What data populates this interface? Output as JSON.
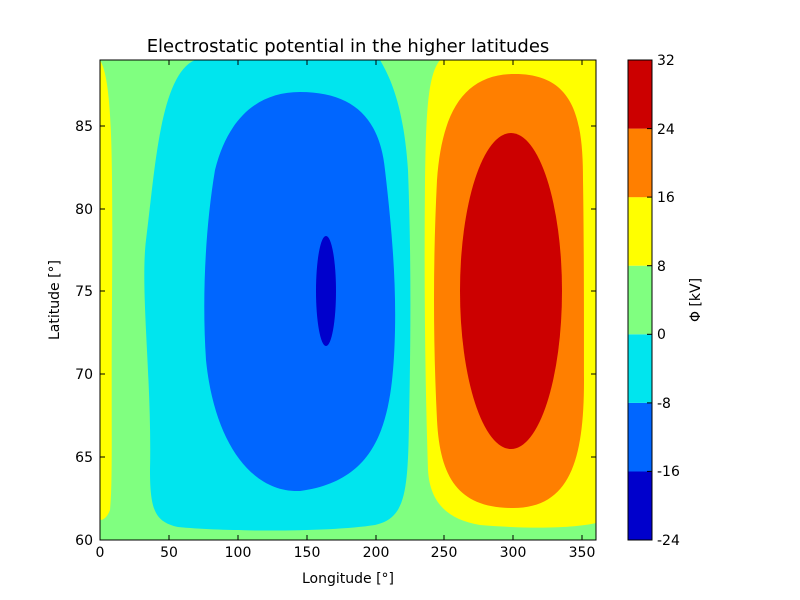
{
  "chart_data": {
    "type": "contourf",
    "title": "Electrostatic potential in the higher latitudes",
    "xlabel": "Longitude [°]",
    "ylabel": "Latitude  [°]",
    "xlim": [
      0,
      360
    ],
    "ylim": [
      60,
      89
    ],
    "xticks": [
      0,
      50,
      100,
      150,
      200,
      250,
      300,
      350
    ],
    "yticks": [
      60,
      65,
      70,
      75,
      80,
      85
    ],
    "colorbar": {
      "label": "Φ  [kV]",
      "levels": [
        -24,
        -16,
        -8,
        0,
        8,
        16,
        24,
        32
      ],
      "tick_labels": [
        "-24",
        "-16",
        "-8",
        "0",
        "8",
        "16",
        "24",
        "32"
      ],
      "colors": [
        "#0000cc",
        "#0066ff",
        "#00e5ee",
        "#80ff80",
        "#ffff00",
        "#ff7f00",
        "#cc0000"
      ]
    },
    "regions": [
      {
        "level": "-8 to 0",
        "color": "#00e5ee",
        "lon_range": [
          30,
          225
        ],
        "lat_range": [
          60.5,
          89
        ]
      },
      {
        "level": "-16 to -8",
        "color": "#0066ff",
        "lon_range": [
          76,
          214
        ],
        "lat_range": [
          63,
          87
        ]
      },
      {
        "level": "-24 to -16",
        "color": "#0000cc",
        "lon_range": [
          158,
          172
        ],
        "lat_range": [
          71.7,
          78.3
        ]
      },
      {
        "level": "8 to 16",
        "color": "#ffff00",
        "lon_range": [
          235,
          360
        ],
        "lat_range": [
          60.6,
          89
        ]
      },
      {
        "level": "16 to 24",
        "color": "#ff7f00",
        "lon_range": [
          253,
          346
        ],
        "lat_range": [
          62,
          88
        ]
      },
      {
        "level": "24 to 32",
        "color": "#cc0000",
        "lon_range": [
          262,
          334
        ],
        "lat_range": [
          65.5,
          84.5
        ]
      },
      {
        "level": "8 to 16",
        "color": "#ffff00",
        "lon_range": [
          0,
          9
        ],
        "lat_range": [
          63,
          88
        ]
      }
    ]
  }
}
